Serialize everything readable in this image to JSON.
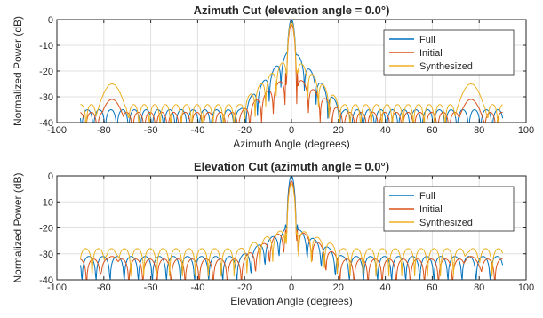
{
  "chart_data": [
    {
      "type": "line",
      "title": "Azimuth Cut (elevation angle = 0.0°)",
      "xlabel": "Azimuth Angle (degrees)",
      "ylabel": "Normalized Power (dB)",
      "xlim": [
        -100,
        100
      ],
      "ylim": [
        -40,
        0
      ],
      "xticks": [
        -100,
        -80,
        -60,
        -40,
        -20,
        0,
        20,
        40,
        60,
        80,
        100
      ],
      "yticks": [
        -40,
        -30,
        -20,
        -10,
        0
      ],
      "grid": true,
      "legend_position": "top-right",
      "series": [
        {
          "name": "Full",
          "color": "#0072BD",
          "x_range": [
            -90,
            90
          ],
          "mainlobe_db": 0,
          "sidelobe_db": -35,
          "first_sidelobe_db": -13,
          "lobe_spacing_deg": 5
        },
        {
          "name": "Initial",
          "color": "#D95319",
          "x_range": [
            -90,
            90
          ],
          "mainlobe_db": -2,
          "sidelobe_db": -36,
          "first_sidelobe_db": -22,
          "lobe_spacing_deg": 5,
          "edge_lobe_db": -31
        },
        {
          "name": "Synthesized",
          "color": "#EDB120",
          "x_range": [
            -90,
            90
          ],
          "mainlobe_db": -1,
          "sidelobe_db": -33,
          "first_sidelobe_db": -15,
          "lobe_spacing_deg": 4.5,
          "edge_lobe_db": -25
        }
      ]
    },
    {
      "type": "line",
      "title": "Elevation Cut (azimuth angle = 0.0°)",
      "xlabel": "Elevation Angle (degrees)",
      "ylabel": "Normalized Power (dB)",
      "xlim": [
        -100,
        100
      ],
      "ylim": [
        -40,
        0
      ],
      "xticks": [
        -100,
        -80,
        -60,
        -40,
        -20,
        0,
        20,
        40,
        60,
        80,
        100
      ],
      "yticks": [
        -40,
        -30,
        -20,
        -10,
        0
      ],
      "grid": true,
      "legend_position": "top-right",
      "series": [
        {
          "name": "Full",
          "color": "#0072BD",
          "x_range": [
            -90,
            90
          ],
          "mainlobe_db": 0,
          "sidelobe_db": -31,
          "first_sidelobe_db": -20,
          "lobe_spacing_deg": 6
        },
        {
          "name": "Initial",
          "color": "#D95319",
          "x_range": [
            -90,
            90
          ],
          "mainlobe_db": -2,
          "sidelobe_db": -32,
          "first_sidelobe_db": -20,
          "lobe_spacing_deg": 6,
          "edge_lobe_db": -31
        },
        {
          "name": "Synthesized",
          "color": "#EDB120",
          "x_range": [
            -90,
            90
          ],
          "mainlobe_db": -3,
          "sidelobe_db": -28,
          "first_sidelobe_db": -20,
          "lobe_spacing_deg": 5.5,
          "edge_lobe_db": -29
        }
      ]
    }
  ]
}
